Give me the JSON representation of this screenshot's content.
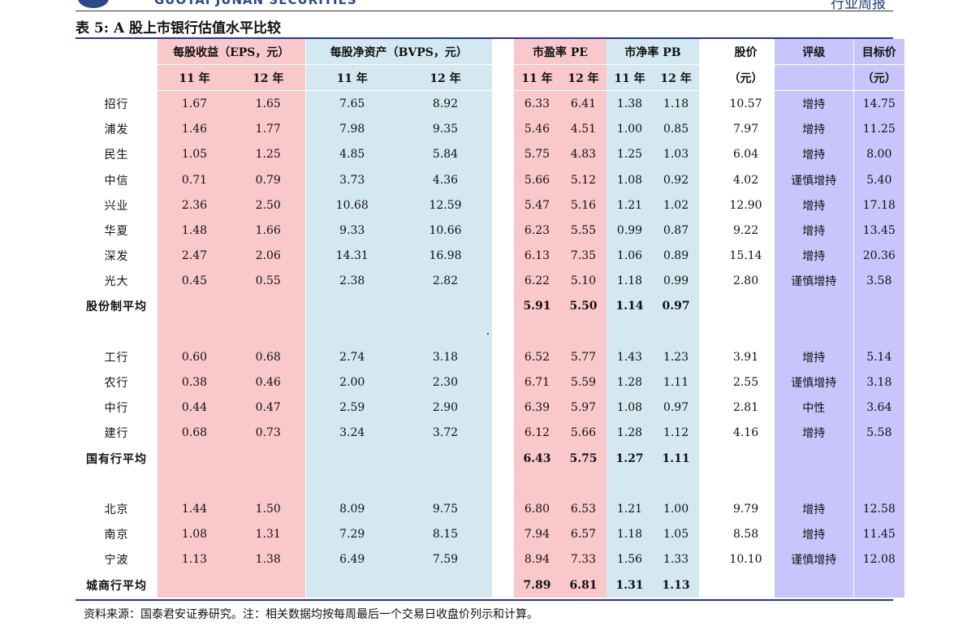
{
  "header": {
    "brand": "GUOTAI JUNAN SECURITIES",
    "report_type": "行业周报"
  },
  "table_title": "表 5:  A 股上市银行估值水平比较",
  "columns": {
    "eps": "每股收益（EPS，元）",
    "bvps": "每股净资产（BVPS，元）",
    "pe": "市盈率 PE",
    "pb": "市净率 PB",
    "price": "股价",
    "price_unit": "（元）",
    "rating": "评级",
    "target": "目标价",
    "target_unit": "（元）",
    "y11": "11 年",
    "y12": "12 年"
  },
  "rows": [
    {
      "name": "招行",
      "eps11": "1.67",
      "eps12": "1.65",
      "bvps11": "7.65",
      "bvps12": "8.92",
      "pe11": "6.33",
      "pe12": "6.41",
      "pb11": "1.38",
      "pb12": "1.18",
      "price": "10.57",
      "rating": "增持",
      "target": "14.75"
    },
    {
      "name": "浦发",
      "eps11": "1.46",
      "eps12": "1.77",
      "bvps11": "7.98",
      "bvps12": "9.35",
      "pe11": "5.46",
      "pe12": "4.51",
      "pb11": "1.00",
      "pb12": "0.85",
      "price": "7.97",
      "rating": "增持",
      "target": "11.25"
    },
    {
      "name": "民生",
      "eps11": "1.05",
      "eps12": "1.25",
      "bvps11": "4.85",
      "bvps12": "5.84",
      "pe11": "5.75",
      "pe12": "4.83",
      "pb11": "1.25",
      "pb12": "1.03",
      "price": "6.04",
      "rating": "增持",
      "target": "8.00"
    },
    {
      "name": "中信",
      "eps11": "0.71",
      "eps12": "0.79",
      "bvps11": "3.73",
      "bvps12": "4.36",
      "pe11": "5.66",
      "pe12": "5.12",
      "pb11": "1.08",
      "pb12": "0.92",
      "price": "4.02",
      "rating": "谨慎增持",
      "target": "5.40"
    },
    {
      "name": "兴业",
      "eps11": "2.36",
      "eps12": "2.50",
      "bvps11": "10.68",
      "bvps12": "12.59",
      "pe11": "5.47",
      "pe12": "5.16",
      "pb11": "1.21",
      "pb12": "1.02",
      "price": "12.90",
      "rating": "增持",
      "target": "17.18"
    },
    {
      "name": "华夏",
      "eps11": "1.48",
      "eps12": "1.66",
      "bvps11": "9.33",
      "bvps12": "10.66",
      "pe11": "6.23",
      "pe12": "5.55",
      "pb11": "0.99",
      "pb12": "0.87",
      "price": "9.22",
      "rating": "增持",
      "target": "13.45"
    },
    {
      "name": "深发",
      "eps11": "2.47",
      "eps12": "2.06",
      "bvps11": "14.31",
      "bvps12": "16.98",
      "pe11": "6.13",
      "pe12": "7.35",
      "pb11": "1.06",
      "pb12": "0.89",
      "price": "15.14",
      "rating": "增持",
      "target": "20.36"
    },
    {
      "name": "光大",
      "eps11": "0.45",
      "eps12": "0.55",
      "bvps11": "2.38",
      "bvps12": "2.82",
      "pe11": "6.22",
      "pe12": "5.10",
      "pb11": "1.18",
      "pb12": "0.99",
      "price": "2.80",
      "rating": "谨慎增持",
      "target": "3.58"
    },
    {
      "avg": true,
      "name": "股份制平均",
      "eps11": "",
      "eps12": "",
      "bvps11": "",
      "bvps12": "",
      "pe11": "5.91",
      "pe12": "5.50",
      "pb11": "1.14",
      "pb12": "0.97",
      "price": "",
      "rating": "",
      "target": ""
    },
    {
      "blank": true
    },
    {
      "name": "工行",
      "eps11": "0.60",
      "eps12": "0.68",
      "bvps11": "2.74",
      "bvps12": "3.18",
      "pe11": "6.52",
      "pe12": "5.77",
      "pb11": "1.43",
      "pb12": "1.23",
      "price": "3.91",
      "rating": "增持",
      "target": "5.14"
    },
    {
      "name": "农行",
      "eps11": "0.38",
      "eps12": "0.46",
      "bvps11": "2.00",
      "bvps12": "2.30",
      "pe11": "6.71",
      "pe12": "5.59",
      "pb11": "1.28",
      "pb12": "1.11",
      "price": "2.55",
      "rating": "谨慎增持",
      "target": "3.18"
    },
    {
      "name": "中行",
      "eps11": "0.44",
      "eps12": "0.47",
      "bvps11": "2.59",
      "bvps12": "2.90",
      "pe11": "6.39",
      "pe12": "5.97",
      "pb11": "1.08",
      "pb12": "0.97",
      "price": "2.81",
      "rating": "中性",
      "target": "3.64"
    },
    {
      "name": "建行",
      "eps11": "0.68",
      "eps12": "0.73",
      "bvps11": "3.24",
      "bvps12": "3.72",
      "pe11": "6.12",
      "pe12": "5.66",
      "pb11": "1.28",
      "pb12": "1.12",
      "price": "4.16",
      "rating": "增持",
      "target": "5.58"
    },
    {
      "avg": true,
      "name": "国有行平均",
      "eps11": "",
      "eps12": "",
      "bvps11": "",
      "bvps12": "",
      "pe11": "6.43",
      "pe12": "5.75",
      "pb11": "1.27",
      "pb12": "1.11",
      "price": "",
      "rating": "",
      "target": ""
    },
    {
      "blank": true
    },
    {
      "name": "北京",
      "eps11": "1.44",
      "eps12": "1.50",
      "bvps11": "8.09",
      "bvps12": "9.75",
      "pe11": "6.80",
      "pe12": "6.53",
      "pb11": "1.21",
      "pb12": "1.00",
      "price": "9.79",
      "rating": "增持",
      "target": "12.58"
    },
    {
      "name": "南京",
      "eps11": "1.08",
      "eps12": "1.31",
      "bvps11": "7.29",
      "bvps12": "8.15",
      "pe11": "7.94",
      "pe12": "6.57",
      "pb11": "1.18",
      "pb12": "1.05",
      "price": "8.58",
      "rating": "增持",
      "target": "11.45"
    },
    {
      "name": "宁波",
      "eps11": "1.13",
      "eps12": "1.38",
      "bvps11": "6.49",
      "bvps12": "7.59",
      "pe11": "8.94",
      "pe12": "7.33",
      "pb11": "1.56",
      "pb12": "1.33",
      "price": "10.10",
      "rating": "谨慎增持",
      "target": "12.08"
    },
    {
      "avg": true,
      "name": "城商行平均",
      "eps11": "",
      "eps12": "",
      "bvps11": "",
      "bvps12": "",
      "pe11": "7.89",
      "pe12": "6.81",
      "pb11": "1.31",
      "pb12": "1.13",
      "price": "",
      "rating": "",
      "target": ""
    }
  ],
  "footnote": "资料来源：国泰君安证券研究。注：相关数据均按每周最后一个交易日收盘价列示和计算。",
  "colors": {
    "pink": "#f9c8ca",
    "blue": "#d4e8f1",
    "purple": "#c7c5fb",
    "rule": "#2432a8"
  }
}
